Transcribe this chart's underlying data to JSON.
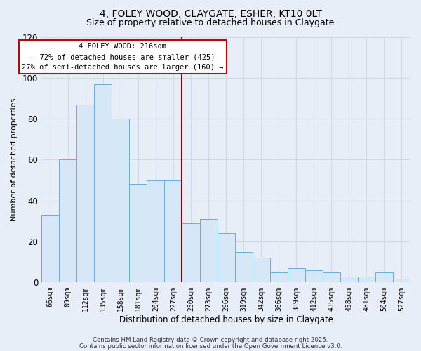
{
  "title": "4, FOLEY WOOD, CLAYGATE, ESHER, KT10 0LT",
  "subtitle": "Size of property relative to detached houses in Claygate",
  "xlabel": "Distribution of detached houses by size in Claygate",
  "ylabel": "Number of detached properties",
  "bar_values": [
    33,
    60,
    87,
    97,
    80,
    48,
    50,
    50,
    29,
    31,
    24,
    15,
    12,
    5,
    7,
    6,
    5,
    3,
    3,
    5,
    2
  ],
  "bin_labels": [
    "66sqm",
    "89sqm",
    "112sqm",
    "135sqm",
    "158sqm",
    "181sqm",
    "204sqm",
    "227sqm",
    "250sqm",
    "273sqm",
    "296sqm",
    "319sqm",
    "342sqm",
    "366sqm",
    "389sqm",
    "412sqm",
    "435sqm",
    "458sqm",
    "481sqm",
    "504sqm",
    "527sqm"
  ],
  "bar_color": "#d6e8f7",
  "bar_edge_color": "#6aaed6",
  "vline_x": 7.5,
  "vline_color": "#990000",
  "ylim": [
    0,
    120
  ],
  "yticks": [
    0,
    20,
    40,
    60,
    80,
    100,
    120
  ],
  "annotation_box_edge": "#cc0000",
  "annotation_box_color": "#ffffff",
  "grid_color": "#d0dae8",
  "background_color": "#e8eef8",
  "footer1": "Contains HM Land Registry data © Crown copyright and database right 2025.",
  "footer2": "Contains public sector information licensed under the Open Government Licence v3.0.",
  "title_fontsize": 10,
  "subtitle_fontsize": 9
}
